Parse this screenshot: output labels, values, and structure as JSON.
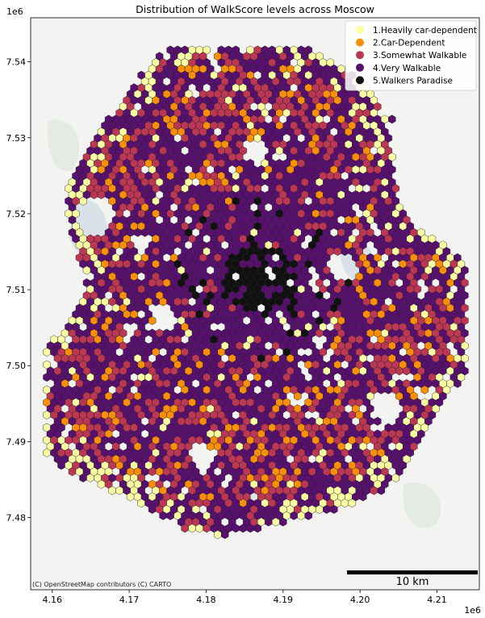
{
  "chart_data": {
    "type": "scatter",
    "title": "Distribution of WalkScore levels across Moscow",
    "xlabel": "",
    "ylabel": "",
    "x_exponent_label": "1e6",
    "y_exponent_label": "1e6",
    "xlim": [
      4.1572,
      4.2155
    ],
    "ylim": [
      7.4705,
      7.5458
    ],
    "x_ticks": [
      4.16,
      4.17,
      4.18,
      4.19,
      4.2,
      4.21
    ],
    "x_tick_labels": [
      "4.16",
      "4.17",
      "4.18",
      "4.19",
      "4.20",
      "4.21"
    ],
    "y_ticks": [
      7.48,
      7.49,
      7.5,
      7.51,
      7.52,
      7.53,
      7.54
    ],
    "y_tick_labels": [
      "7.48",
      "7.49",
      "7.50",
      "7.51",
      "7.52",
      "7.53",
      "7.54"
    ],
    "grid": false,
    "legend_position": "top-right",
    "categories": [
      {
        "name": "1.Heavily car-dependent",
        "color": "#fcffa4"
      },
      {
        "name": "2.Car-Dependent",
        "color": "#f98e09"
      },
      {
        "name": "3.Somewhat Walkable",
        "color": "#bc3754"
      },
      {
        "name": "4.Very Walkable",
        "color": "#57106e"
      },
      {
        "name": "5.Walkers Paradise",
        "color": "#111111"
      }
    ],
    "scalebar_label": "10 km",
    "attribution": "(C) OpenStreetMap contributors (C) CARTO"
  }
}
